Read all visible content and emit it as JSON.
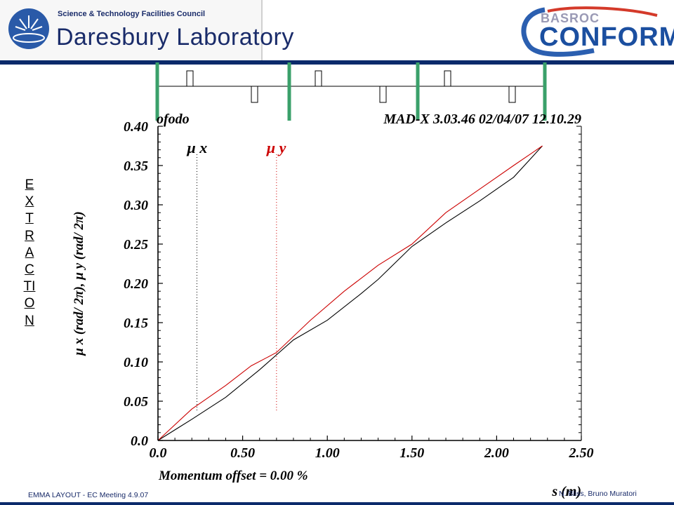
{
  "header": {
    "org_small": "Science & Technology Facilities Council",
    "org_big": "Daresbury Laboratory",
    "brand_top": "BASROC",
    "brand_main": "CONFORM",
    "colors": {
      "navy": "#0b2a6b",
      "brand_blue": "#1b4fa0",
      "accent_green": "#3aa06a"
    }
  },
  "side_label": "EXTRACTION",
  "footer": {
    "left": "EMMA LAYOUT  -  EC Meeting  4.9.07",
    "right": "N. Bliss, Bruno Muratori"
  },
  "chart_data": {
    "type": "line",
    "title_left": "ofodo",
    "title_right": "MAD-X 3.03.46  02/04/07 12.10.29",
    "xlabel": "s (m)",
    "ylabel": "μ x (rad/ 2π),  μ y (rad/ 2π)",
    "subtitle": "Momentum offset =    0.00 %",
    "xlim": [
      0,
      2.5
    ],
    "ylim": [
      0,
      0.4
    ],
    "xticks": [
      "0.0",
      "0.50",
      "1.00",
      "1.50",
      "2.00",
      "2.50"
    ],
    "yticks": [
      "0.0",
      "0.05",
      "0.10",
      "0.15",
      "0.20",
      "0.25",
      "0.30",
      "0.35",
      "0.40"
    ],
    "grid": false,
    "legend": [
      {
        "label": "μ x",
        "color": "#000000",
        "x": 0.23
      },
      {
        "label": "μ y",
        "color": "#cc0000",
        "x": 0.7
      }
    ],
    "series": [
      {
        "name": "μ x",
        "color": "#000000",
        "x": [
          0,
          0.2,
          0.4,
          0.6,
          0.8,
          1.0,
          1.2,
          1.3,
          1.5,
          1.7,
          1.9,
          2.1,
          2.27
        ],
        "y": [
          0,
          0.027,
          0.055,
          0.09,
          0.128,
          0.153,
          0.187,
          0.205,
          0.247,
          0.277,
          0.305,
          0.335,
          0.375
        ]
      },
      {
        "name": "μ y",
        "color": "#cc0000",
        "x": [
          0,
          0.2,
          0.4,
          0.55,
          0.7,
          0.9,
          1.1,
          1.3,
          1.5,
          1.7,
          1.9,
          2.1,
          2.27
        ],
        "y": [
          0,
          0.04,
          0.07,
          0.095,
          0.112,
          0.153,
          0.19,
          0.223,
          0.25,
          0.29,
          0.32,
          0.35,
          0.375
        ]
      }
    ]
  }
}
